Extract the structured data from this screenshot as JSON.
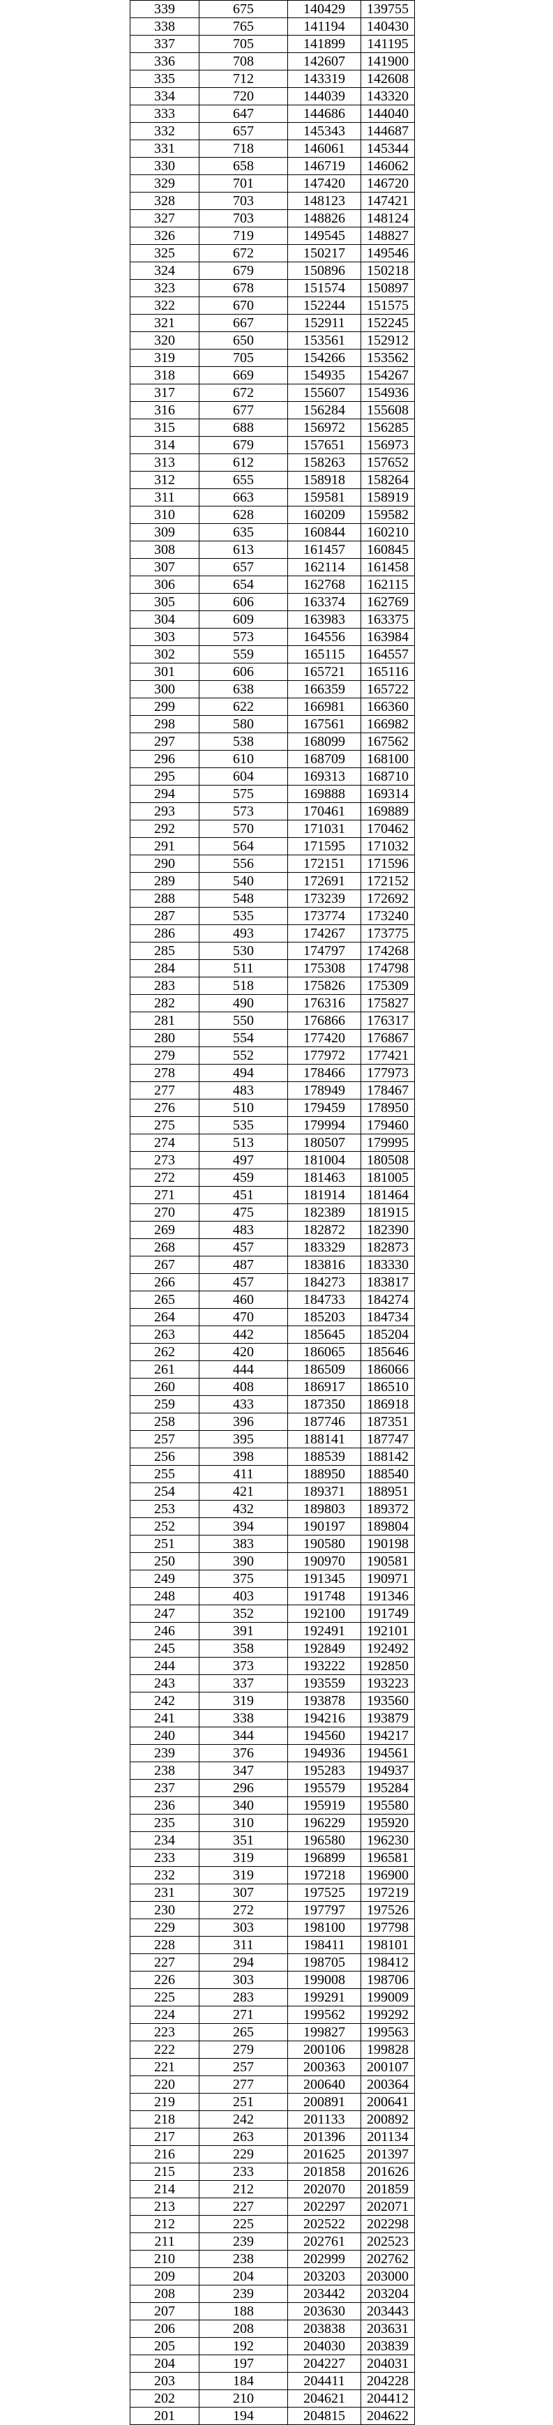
{
  "table": {
    "rows": [
      [
        339,
        675,
        140429,
        139755
      ],
      [
        338,
        765,
        141194,
        140430
      ],
      [
        337,
        705,
        141899,
        141195
      ],
      [
        336,
        708,
        142607,
        141900
      ],
      [
        335,
        712,
        143319,
        142608
      ],
      [
        334,
        720,
        144039,
        143320
      ],
      [
        333,
        647,
        144686,
        144040
      ],
      [
        332,
        657,
        145343,
        144687
      ],
      [
        331,
        718,
        146061,
        145344
      ],
      [
        330,
        658,
        146719,
        146062
      ],
      [
        329,
        701,
        147420,
        146720
      ],
      [
        328,
        703,
        148123,
        147421
      ],
      [
        327,
        703,
        148826,
        148124
      ],
      [
        326,
        719,
        149545,
        148827
      ],
      [
        325,
        672,
        150217,
        149546
      ],
      [
        324,
        679,
        150896,
        150218
      ],
      [
        323,
        678,
        151574,
        150897
      ],
      [
        322,
        670,
        152244,
        151575
      ],
      [
        321,
        667,
        152911,
        152245
      ],
      [
        320,
        650,
        153561,
        152912
      ],
      [
        319,
        705,
        154266,
        153562
      ],
      [
        318,
        669,
        154935,
        154267
      ],
      [
        317,
        672,
        155607,
        154936
      ],
      [
        316,
        677,
        156284,
        155608
      ],
      [
        315,
        688,
        156972,
        156285
      ],
      [
        314,
        679,
        157651,
        156973
      ],
      [
        313,
        612,
        158263,
        157652
      ],
      [
        312,
        655,
        158918,
        158264
      ],
      [
        311,
        663,
        159581,
        158919
      ],
      [
        310,
        628,
        160209,
        159582
      ],
      [
        309,
        635,
        160844,
        160210
      ],
      [
        308,
        613,
        161457,
        160845
      ],
      [
        307,
        657,
        162114,
        161458
      ],
      [
        306,
        654,
        162768,
        162115
      ],
      [
        305,
        606,
        163374,
        162769
      ],
      [
        304,
        609,
        163983,
        163375
      ],
      [
        303,
        573,
        164556,
        163984
      ],
      [
        302,
        559,
        165115,
        164557
      ],
      [
        301,
        606,
        165721,
        165116
      ],
      [
        300,
        638,
        166359,
        165722
      ],
      [
        299,
        622,
        166981,
        166360
      ],
      [
        298,
        580,
        167561,
        166982
      ],
      [
        297,
        538,
        168099,
        167562
      ],
      [
        296,
        610,
        168709,
        168100
      ],
      [
        295,
        604,
        169313,
        168710
      ],
      [
        294,
        575,
        169888,
        169314
      ],
      [
        293,
        573,
        170461,
        169889
      ],
      [
        292,
        570,
        171031,
        170462
      ],
      [
        291,
        564,
        171595,
        171032
      ],
      [
        290,
        556,
        172151,
        171596
      ],
      [
        289,
        540,
        172691,
        172152
      ],
      [
        288,
        548,
        173239,
        172692
      ],
      [
        287,
        535,
        173774,
        173240
      ],
      [
        286,
        493,
        174267,
        173775
      ],
      [
        285,
        530,
        174797,
        174268
      ],
      [
        284,
        511,
        175308,
        174798
      ],
      [
        283,
        518,
        175826,
        175309
      ],
      [
        282,
        490,
        176316,
        175827
      ],
      [
        281,
        550,
        176866,
        176317
      ],
      [
        280,
        554,
        177420,
        176867
      ],
      [
        279,
        552,
        177972,
        177421
      ],
      [
        278,
        494,
        178466,
        177973
      ],
      [
        277,
        483,
        178949,
        178467
      ],
      [
        276,
        510,
        179459,
        178950
      ],
      [
        275,
        535,
        179994,
        179460
      ],
      [
        274,
        513,
        180507,
        179995
      ],
      [
        273,
        497,
        181004,
        180508
      ],
      [
        272,
        459,
        181463,
        181005
      ],
      [
        271,
        451,
        181914,
        181464
      ],
      [
        270,
        475,
        182389,
        181915
      ],
      [
        269,
        483,
        182872,
        182390
      ],
      [
        268,
        457,
        183329,
        182873
      ],
      [
        267,
        487,
        183816,
        183330
      ],
      [
        266,
        457,
        184273,
        183817
      ],
      [
        265,
        460,
        184733,
        184274
      ],
      [
        264,
        470,
        185203,
        184734
      ],
      [
        263,
        442,
        185645,
        185204
      ],
      [
        262,
        420,
        186065,
        185646
      ],
      [
        261,
        444,
        186509,
        186066
      ],
      [
        260,
        408,
        186917,
        186510
      ],
      [
        259,
        433,
        187350,
        186918
      ],
      [
        258,
        396,
        187746,
        187351
      ],
      [
        257,
        395,
        188141,
        187747
      ],
      [
        256,
        398,
        188539,
        188142
      ],
      [
        255,
        411,
        188950,
        188540
      ],
      [
        254,
        421,
        189371,
        188951
      ],
      [
        253,
        432,
        189803,
        189372
      ],
      [
        252,
        394,
        190197,
        189804
      ],
      [
        251,
        383,
        190580,
        190198
      ],
      [
        250,
        390,
        190970,
        190581
      ],
      [
        249,
        375,
        191345,
        190971
      ],
      [
        248,
        403,
        191748,
        191346
      ],
      [
        247,
        352,
        192100,
        191749
      ],
      [
        246,
        391,
        192491,
        192101
      ],
      [
        245,
        358,
        192849,
        192492
      ],
      [
        244,
        373,
        193222,
        192850
      ],
      [
        243,
        337,
        193559,
        193223
      ],
      [
        242,
        319,
        193878,
        193560
      ],
      [
        241,
        338,
        194216,
        193879
      ],
      [
        240,
        344,
        194560,
        194217
      ],
      [
        239,
        376,
        194936,
        194561
      ],
      [
        238,
        347,
        195283,
        194937
      ],
      [
        237,
        296,
        195579,
        195284
      ],
      [
        236,
        340,
        195919,
        195580
      ],
      [
        235,
        310,
        196229,
        195920
      ],
      [
        234,
        351,
        196580,
        196230
      ],
      [
        233,
        319,
        196899,
        196581
      ],
      [
        232,
        319,
        197218,
        196900
      ],
      [
        231,
        307,
        197525,
        197219
      ],
      [
        230,
        272,
        197797,
        197526
      ],
      [
        229,
        303,
        198100,
        197798
      ],
      [
        228,
        311,
        198411,
        198101
      ],
      [
        227,
        294,
        198705,
        198412
      ],
      [
        226,
        303,
        199008,
        198706
      ],
      [
        225,
        283,
        199291,
        199009
      ],
      [
        224,
        271,
        199562,
        199292
      ],
      [
        223,
        265,
        199827,
        199563
      ],
      [
        222,
        279,
        200106,
        199828
      ],
      [
        221,
        257,
        200363,
        200107
      ],
      [
        220,
        277,
        200640,
        200364
      ],
      [
        219,
        251,
        200891,
        200641
      ],
      [
        218,
        242,
        201133,
        200892
      ],
      [
        217,
        263,
        201396,
        201134
      ],
      [
        216,
        229,
        201625,
        201397
      ],
      [
        215,
        233,
        201858,
        201626
      ],
      [
        214,
        212,
        202070,
        201859
      ],
      [
        213,
        227,
        202297,
        202071
      ],
      [
        212,
        225,
        202522,
        202298
      ],
      [
        211,
        239,
        202761,
        202523
      ],
      [
        210,
        238,
        202999,
        202762
      ],
      [
        209,
        204,
        203203,
        203000
      ],
      [
        208,
        239,
        203442,
        203204
      ],
      [
        207,
        188,
        203630,
        203443
      ],
      [
        206,
        208,
        203838,
        203631
      ],
      [
        205,
        192,
        204030,
        203839
      ],
      [
        204,
        197,
        204227,
        204031
      ],
      [
        203,
        184,
        204411,
        204228
      ],
      [
        202,
        210,
        204621,
        204412
      ]
    ],
    "partial_row": [
      201,
      194,
      204815,
      204622
    ]
  }
}
